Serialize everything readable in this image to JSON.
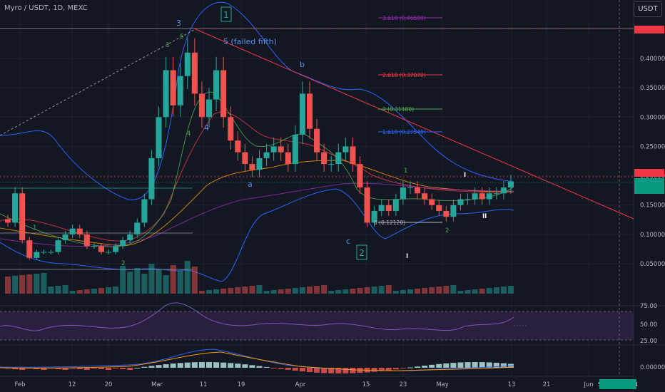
{
  "header": {
    "symbol_line": "Myro / USDT, 1D, MEXC",
    "unit_button": "USDT"
  },
  "price_axis": {
    "ticks": [
      "0.40000",
      "0.35000",
      "0.30000",
      "0.25000",
      "0.20000",
      "0.15000",
      "0.10000",
      "0.05000"
    ],
    "badges": [
      {
        "label": "0.44752",
        "color": "#f23645"
      },
      {
        "label": "0.19531",
        "color": "#f23645"
      },
      {
        "label": "0.19085",
        "color": "#089981"
      },
      {
        "label": "16:46:49",
        "color": "#089981"
      }
    ]
  },
  "rsi_axis": {
    "ticks": [
      "75.00",
      "50.00",
      "25.00"
    ]
  },
  "macd_axis": {
    "ticks": [
      "0.00000"
    ]
  },
  "time_axis": {
    "ticks": [
      "Feb",
      "12",
      "20",
      "Mar",
      "11",
      "19",
      "Apr",
      "15",
      "23",
      "May",
      "13",
      "21",
      "Jun"
    ],
    "cursor_date": "Sat 08 Jun '24"
  },
  "annotations": {
    "waves_blue": [
      "3",
      "4",
      "5 (failed fifth)",
      "b",
      "a",
      "c"
    ],
    "waves_green": [
      "3",
      "5",
      "4",
      "1",
      "2",
      "1",
      "2"
    ],
    "boxed": [
      "1",
      "2"
    ],
    "roman": [
      "I",
      "II",
      "I"
    ]
  },
  "fib_levels": [
    {
      "label": "3.618 (0.46600)",
      "color": "#9c27b0"
    },
    {
      "label": "2.618 (0.37070)",
      "color": "#f23645"
    },
    {
      "label": "2 (0.31180)",
      "color": "#4caf50"
    },
    {
      "label": "1.618 (0.27540)",
      "color": "#2962ff"
    },
    {
      "label": "0 (0.12120)",
      "color": "#b2b5be"
    }
  ],
  "colors": {
    "up": "#26a69a",
    "down": "#ef5350",
    "bb": "#2962ff",
    "trend": "#f23645",
    "rsi": "#7e57c2"
  },
  "chart_data": {
    "type": "candlestick",
    "title": "Myro / USDT, 1D, MEXC",
    "ylim": [
      0,
      0.47
    ],
    "x_ticks": [
      "Feb",
      "12",
      "20",
      "Mar",
      "11",
      "19",
      "Apr",
      "15",
      "23",
      "May",
      "13",
      "21",
      "Jun"
    ],
    "current_price": 0.19085,
    "marked_levels": [
      0.44752,
      0.19531
    ],
    "approx_ohlc_closes": [
      0.12,
      0.17,
      0.09,
      0.06,
      0.07,
      0.07,
      0.07,
      0.09,
      0.1,
      0.11,
      0.1,
      0.08,
      0.08,
      0.07,
      0.07,
      0.08,
      0.09,
      0.1,
      0.12,
      0.16,
      0.23,
      0.3,
      0.38,
      0.32,
      0.37,
      0.41,
      0.34,
      0.3,
      0.33,
      0.38,
      0.3,
      0.26,
      0.24,
      0.22,
      0.21,
      0.23,
      0.24,
      0.25,
      0.24,
      0.22,
      0.27,
      0.34,
      0.28,
      0.24,
      0.22,
      0.22,
      0.24,
      0.25,
      0.22,
      0.18,
      0.12,
      0.14,
      0.15,
      0.14,
      0.16,
      0.18,
      0.18,
      0.17,
      0.16,
      0.15,
      0.14,
      0.13,
      0.15,
      0.16,
      0.16,
      0.17,
      0.16,
      0.17,
      0.17,
      0.18,
      0.19
    ]
  }
}
